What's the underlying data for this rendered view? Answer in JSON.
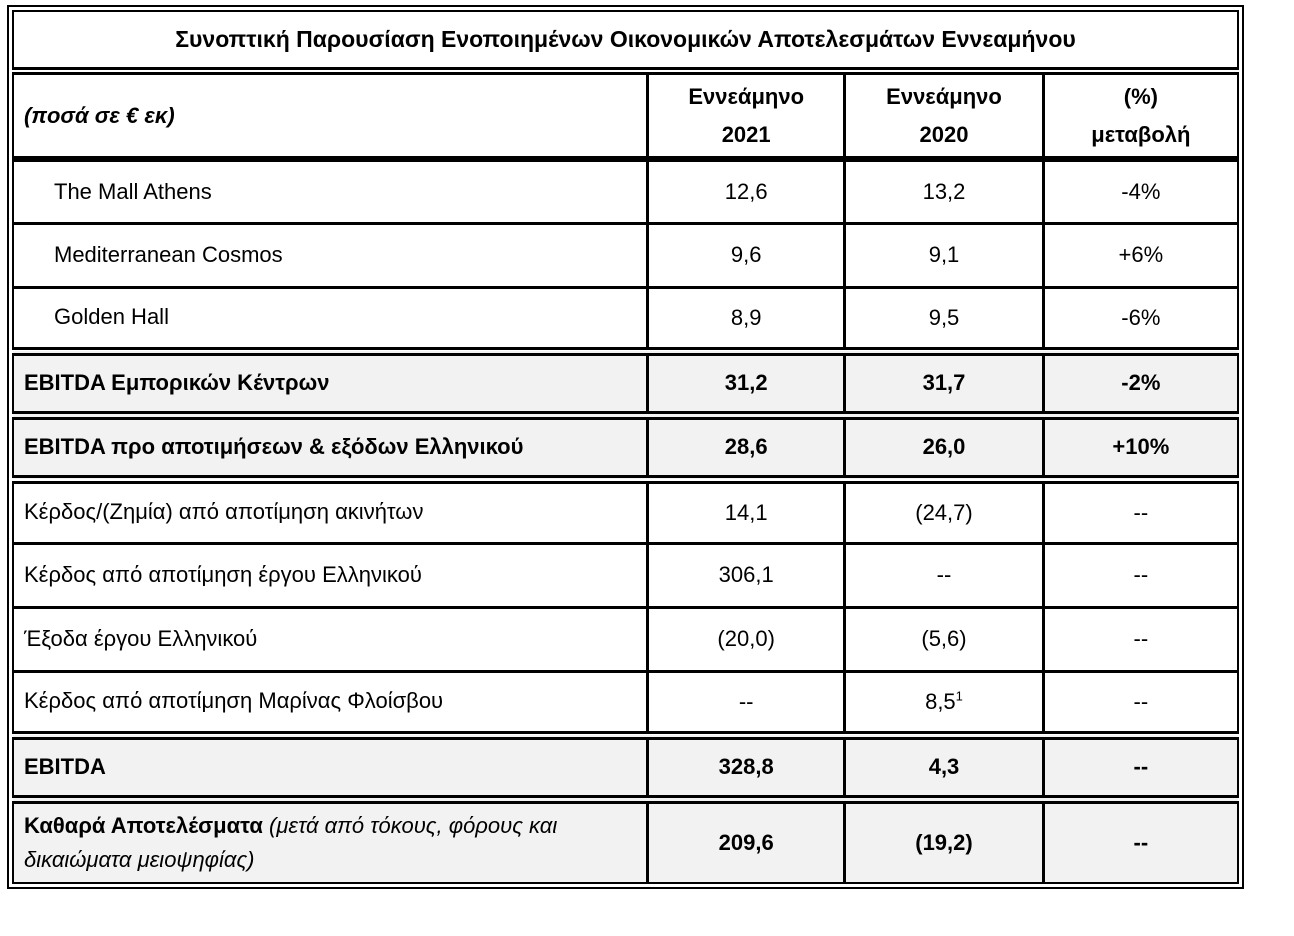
{
  "title": "Συνοπτική Παρουσίαση Ενοποιημένων Οικονομικών Αποτελεσμάτων Εννεαμήνου",
  "table": {
    "unit_label": "(ποσά σε € εκ)",
    "columns": [
      {
        "line1": "Εννεάμηνο",
        "line2": "2021"
      },
      {
        "line1": "Εννεάμηνο",
        "line2": "2020"
      },
      {
        "line1": "(%)",
        "line2": "μεταβολή"
      }
    ],
    "rows": [
      {
        "label": "The Mall Athens",
        "y2021": "12,6",
        "y2020": "13,2",
        "change": "-4%"
      },
      {
        "label": "Mediterranean Cosmos",
        "y2021": "9,6",
        "y2020": "9,1",
        "change": "+6%"
      },
      {
        "label": "Golden Hall",
        "y2021": "8,9",
        "y2020": "9,5",
        "change": "-6%"
      },
      {
        "label": "EBITDA Εμπορικών Κέντρων",
        "y2021": "31,2",
        "y2020": "31,7",
        "change": "-2%"
      },
      {
        "label": "EBITDA προ αποτιμήσεων & εξόδων Ελληνικού",
        "y2021": "28,6",
        "y2020": "26,0",
        "change": "+10%"
      },
      {
        "label": "Κέρδος/(Ζημία) από αποτίμηση ακινήτων",
        "y2021": "14,1",
        "y2020": "(24,7)",
        "change": "--"
      },
      {
        "label": "Κέρδος από αποτίμηση έργου Ελληνικού",
        "y2021": "306,1",
        "y2020": "--",
        "change": "--"
      },
      {
        "label": "Έξοδα έργου Ελληνικού",
        "y2021": "(20,0)",
        "y2020": "(5,6)",
        "change": "--"
      },
      {
        "label": "Κέρδος από αποτίμηση Μαρίνας Φλοίσβου",
        "y2021": "--",
        "y2020": "8,5",
        "y2020_footnote": "1",
        "change": "--"
      },
      {
        "label": "EBITDA",
        "y2021": "328,8",
        "y2020": "4,3",
        "change": "--"
      },
      {
        "label": "Καθαρά Αποτελέσματα",
        "label_note": "(μετά από τόκους, φόρους και δικαιώματα μειοψηφίας)",
        "y2021": "209,6",
        "y2020": "(19,2)",
        "change": "--"
      }
    ]
  },
  "colors": {
    "section_row_bg": "#f2f2f2",
    "border": "#000000",
    "background": "#ffffff"
  }
}
